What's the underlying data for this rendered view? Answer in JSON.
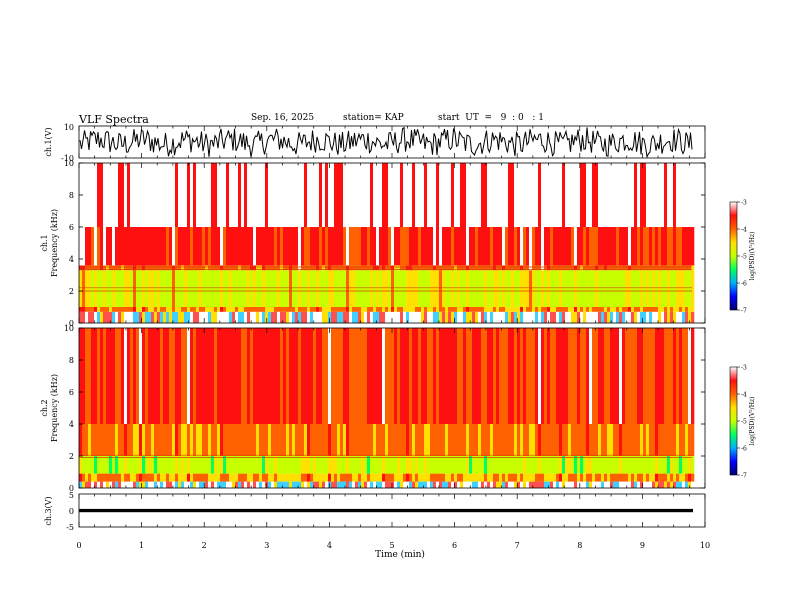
{
  "header": {
    "title": "VLF Spectra",
    "date": "Sep. 16, 2025",
    "station": "station= KAP",
    "start_ut": "start  UT  =   9  : 0   : 1"
  },
  "chart_data": [
    {
      "type": "line",
      "name": "ch1-waveform",
      "ylabel": "ch.1(V)",
      "ylim": [
        -10,
        10
      ],
      "ytick_labels": [
        "10",
        "-10"
      ],
      "x_range_min": [
        0,
        9.85
      ],
      "description_note": "dense noise waveform spanning roughly -8 to 8 V"
    },
    {
      "type": "heatmap",
      "name": "ch1-spectrogram",
      "ylabel_line1": "ch.1",
      "ylabel_line2": "Frequency  (kHz)",
      "ylim": [
        0,
        10
      ],
      "ytick_labels": [
        "0",
        "2",
        "4",
        "6",
        "8",
        "10"
      ],
      "bands_khz": [
        {
          "from": 0.0,
          "to": 0.7,
          "level": "mixed"
        },
        {
          "from": 0.7,
          "to": 1.0,
          "level": -4.2
        },
        {
          "from": 1.0,
          "to": 3.3,
          "level": -4.9
        },
        {
          "from": 3.3,
          "to": 3.6,
          "level": -4.0
        },
        {
          "from": 3.6,
          "to": 6.0,
          "level": -3.6
        },
        {
          "from": 6.0,
          "to": 10.0,
          "level": -3.2
        }
      ],
      "lines_khz": [
        2.0,
        2.2,
        3.35,
        3.5
      ]
    },
    {
      "type": "heatmap",
      "name": "ch2-spectrogram",
      "ylabel_line1": "ch.2",
      "ylabel_line2": "Frequency  (kHz)",
      "ylim": [
        0,
        10
      ],
      "ytick_labels": [
        "0",
        "2",
        "4",
        "6",
        "8",
        "10"
      ],
      "bands_khz": [
        {
          "from": 0.0,
          "to": 0.4,
          "level": "mixed"
        },
        {
          "from": 0.4,
          "to": 0.9,
          "level": -4.3
        },
        {
          "from": 0.9,
          "to": 2.0,
          "level": -5.0
        },
        {
          "from": 2.0,
          "to": 4.0,
          "level": -4.1
        },
        {
          "from": 4.0,
          "to": 10.0,
          "level": -3.7
        }
      ],
      "lines_khz": [
        1.9,
        2.05
      ]
    },
    {
      "type": "line",
      "name": "ch3-waveform",
      "ylabel": "ch.3(V)",
      "ylim": [
        -5,
        5
      ],
      "ytick_labels": [
        "5",
        "0",
        "-5"
      ],
      "band_v": [
        -0.5,
        0.5
      ],
      "xlabel": "Time  (min)",
      "xlim": [
        0,
        10
      ],
      "xtick_labels": [
        "0",
        "1",
        "2",
        "3",
        "4",
        "5",
        "6",
        "7",
        "8",
        "9",
        "10"
      ]
    }
  ],
  "colorbar": {
    "label": "log(PSD)(V²/Hz)",
    "range": [
      -7,
      -3
    ],
    "tick_labels": [
      "-3",
      "-4",
      "-5",
      "-6",
      "-7"
    ],
    "colors": [
      "#000070",
      "#0000ff",
      "#00b0ff",
      "#00ff60",
      "#c8ff00",
      "#ffe000",
      "#ff6000",
      "#ff1010",
      "#ffffff"
    ]
  }
}
